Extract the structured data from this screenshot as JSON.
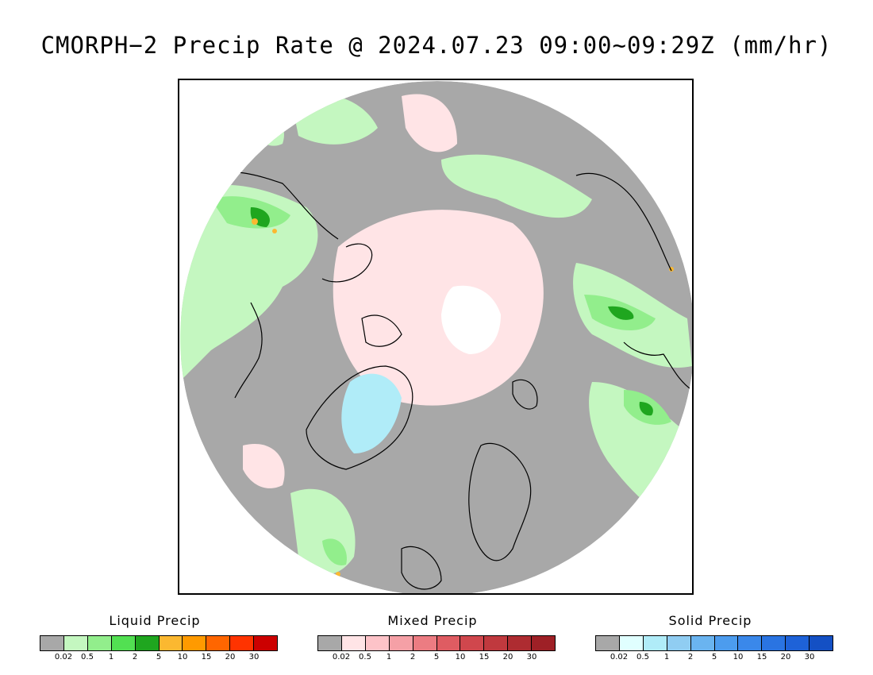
{
  "title": "CMORPH−2 Precip Rate @ 2024.07.23 09:00~09:29Z (mm/hr)",
  "legends": [
    {
      "title": "Liquid Precip",
      "colors": [
        "#a8a8a8",
        "#c4f7c0",
        "#92ee8c",
        "#52e052",
        "#1fa61f",
        "#fbb830",
        "#ff9a00",
        "#ff6600",
        "#ff3300",
        "#cc0000"
      ],
      "ticks": [
        "0.02",
        "0.5",
        "1",
        "2",
        "5",
        "10",
        "15",
        "20",
        "30"
      ]
    },
    {
      "title": "Mixed Precip",
      "colors": [
        "#a8a8a8",
        "#ffe4e6",
        "#fdc3c8",
        "#f5a0a6",
        "#ec7c82",
        "#df5c62",
        "#d0474d",
        "#c0393e",
        "#ae2c31",
        "#9e2026"
      ],
      "ticks": [
        "0.02",
        "0.5",
        "1",
        "2",
        "5",
        "10",
        "15",
        "20",
        "30"
      ]
    },
    {
      "title": "Solid Precip",
      "colors": [
        "#a8a8a8",
        "#e0ffff",
        "#b0ecf8",
        "#90cdf2",
        "#6ab4f0",
        "#4c9cee",
        "#3a88ea",
        "#2a74e2",
        "#1e62d8",
        "#1450c4"
      ],
      "ticks": [
        "0.02",
        "0.5",
        "1",
        "2",
        "5",
        "10",
        "15",
        "20",
        "30"
      ]
    }
  ],
  "map_colors": {
    "no_precip": "#a8a8a8",
    "light_liquid": "#c4f7c0",
    "moderate_liquid": "#92ee8c",
    "heavy_liquid": "#1fa61f",
    "light_mixed": "#ffe4e6",
    "solid": "#b0ecf8",
    "no_data": "#ffffff",
    "coastline": "#000000"
  }
}
